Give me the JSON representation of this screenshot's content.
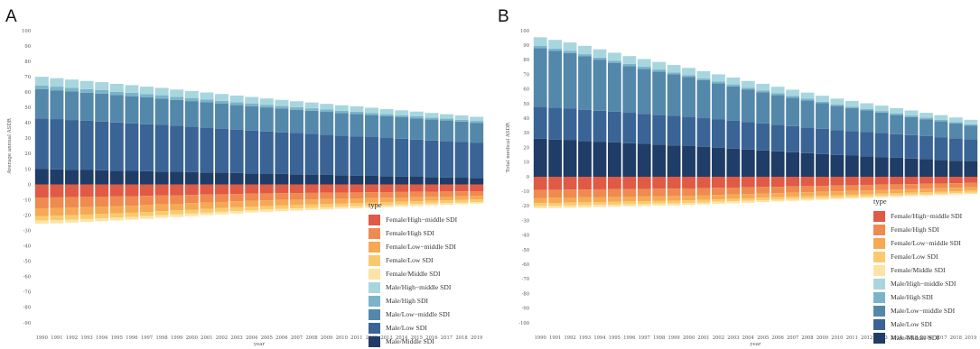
{
  "chart_data": [
    {
      "panel": "A",
      "type": "bar",
      "stacked": true,
      "ylabel": "Average annual ASDR",
      "xlabel": "year",
      "ylim": [
        -90,
        100
      ],
      "y_ticks": [
        -90,
        -80,
        -70,
        -60,
        -50,
        -40,
        -30,
        -20,
        -10,
        0,
        10,
        20,
        30,
        40,
        50,
        60,
        70,
        80,
        90,
        100
      ],
      "x": [
        1990,
        1991,
        1992,
        1993,
        1994,
        1995,
        1996,
        1997,
        1998,
        1999,
        2000,
        2001,
        2002,
        2003,
        2004,
        2005,
        2006,
        2007,
        2008,
        2009,
        2010,
        2011,
        2012,
        2013,
        2014,
        2015,
        2016,
        2017,
        2018,
        2019
      ],
      "x_tick_labels": [
        "1990",
        "1991",
        "1992",
        "1993",
        "1994",
        "1995",
        "1996",
        "1997",
        "1998",
        "1999",
        "2000",
        "2001",
        "2002",
        "2003",
        "2004",
        "2005",
        "2006",
        "2007",
        "2008",
        "2009",
        "2010",
        "2011",
        "2012",
        "2013",
        "2014",
        "2015",
        "2016",
        "2017",
        "2018",
        "2019"
      ],
      "legend_title": "type",
      "legend_position": "bottom-right",
      "grid": false,
      "series": [
        {
          "name": "Female/High−middle SDI",
          "color": "#e05a45",
          "values": [
            -8.5,
            -8.4,
            -8.3,
            -8.1,
            -7.9,
            -7.8,
            -7.6,
            -7.4,
            -7.2,
            -7.0,
            -6.8,
            -6.6,
            -6.4,
            -6.2,
            -6.0,
            -5.8,
            -5.7,
            -5.6,
            -5.5,
            -5.4,
            -5.3,
            -5.2,
            -5.1,
            -5.0,
            -4.9,
            -4.8,
            -4.7,
            -4.6,
            -4.5,
            -4.4
          ]
        },
        {
          "name": "Female/High SDI",
          "color": "#ef8a50",
          "values": [
            -7.0,
            -6.9,
            -6.8,
            -6.6,
            -6.5,
            -6.3,
            -6.2,
            -6.0,
            -5.8,
            -5.6,
            -5.4,
            -5.2,
            -5.0,
            -4.8,
            -4.6,
            -4.5,
            -4.4,
            -4.3,
            -4.2,
            -4.1,
            -4.0,
            -3.9,
            -3.8,
            -3.7,
            -3.6,
            -3.5,
            -3.4,
            -3.3,
            -3.2,
            -3.1
          ]
        },
        {
          "name": "Female/Low−middle SDI",
          "color": "#f5a955",
          "values": [
            -5.0,
            -5.0,
            -4.9,
            -4.9,
            -4.8,
            -4.7,
            -4.6,
            -4.5,
            -4.4,
            -4.3,
            -4.2,
            -4.1,
            -4.0,
            -3.9,
            -3.8,
            -3.7,
            -3.6,
            -3.5,
            -3.4,
            -3.3,
            -3.2,
            -3.1,
            -3.0,
            -2.9,
            -2.8,
            -2.7,
            -2.6,
            -2.5,
            -2.4,
            -2.3
          ]
        },
        {
          "name": "Female/Low SDI",
          "color": "#fbc96d",
          "values": [
            -3.0,
            -3.0,
            -2.9,
            -2.9,
            -2.8,
            -2.8,
            -2.7,
            -2.7,
            -2.6,
            -2.6,
            -2.5,
            -2.5,
            -2.4,
            -2.4,
            -2.3,
            -2.3,
            -2.2,
            -2.2,
            -2.1,
            -2.1,
            -2.0,
            -2.0,
            -1.9,
            -1.9,
            -1.8,
            -1.8,
            -1.7,
            -1.7,
            -1.6,
            -1.6
          ]
        },
        {
          "name": "Female/Middle SDI",
          "color": "#fde3a6",
          "values": [
            -2.0,
            -2.0,
            -1.9,
            -1.9,
            -1.9,
            -1.8,
            -1.8,
            -1.8,
            -1.7,
            -1.7,
            -1.7,
            -1.6,
            -1.6,
            -1.6,
            -1.5,
            -1.5,
            -1.5,
            -1.4,
            -1.4,
            -1.4,
            -1.3,
            -1.3,
            -1.3,
            -1.2,
            -1.2,
            -1.2,
            -1.1,
            -1.1,
            -1.1,
            -1.0
          ]
        },
        {
          "name": "Male/Middle SDI",
          "color": "#1f3d66",
          "values": [
            10.0,
            9.8,
            9.6,
            9.4,
            9.2,
            9.0,
            8.8,
            8.6,
            8.4,
            8.2,
            8.0,
            7.8,
            7.6,
            7.4,
            7.2,
            7.0,
            6.8,
            6.6,
            6.4,
            6.2,
            6.0,
            5.8,
            5.6,
            5.4,
            5.2,
            5.0,
            4.8,
            4.6,
            4.4,
            4.2
          ]
        },
        {
          "name": "Male/Low SDI",
          "color": "#3a6495",
          "values": [
            33.0,
            32.7,
            32.3,
            32.0,
            31.7,
            31.3,
            31.0,
            30.6,
            30.3,
            29.9,
            29.5,
            29.1,
            28.7,
            28.3,
            27.9,
            27.5,
            27.1,
            26.8,
            26.5,
            26.2,
            25.8,
            25.5,
            25.2,
            24.8,
            24.5,
            24.2,
            23.8,
            23.5,
            23.2,
            22.8
          ]
        },
        {
          "name": "Male/Low−middle SDI",
          "color": "#5488ab",
          "values": [
            18.9,
            18.7,
            18.5,
            18.3,
            18.1,
            17.8,
            17.6,
            17.4,
            17.2,
            16.9,
            16.7,
            16.5,
            16.2,
            16.0,
            15.8,
            15.6,
            15.4,
            15.2,
            15.0,
            14.8,
            14.6,
            14.5,
            14.3,
            14.1,
            14.0,
            13.8,
            13.6,
            13.5,
            13.3,
            13.1
          ]
        },
        {
          "name": "Male/High SDI",
          "color": "#7bb4c9",
          "values": [
            2.5,
            2.4,
            2.4,
            2.3,
            2.3,
            2.2,
            2.2,
            2.1,
            2.1,
            2.0,
            2.0,
            1.9,
            1.9,
            1.8,
            1.8,
            1.7,
            1.7,
            1.6,
            1.6,
            1.5,
            1.5,
            1.5,
            1.4,
            1.4,
            1.3,
            1.3,
            1.3,
            1.2,
            1.2,
            1.2
          ]
        },
        {
          "name": "Male/High−middle SDI",
          "color": "#a8d6df",
          "values": [
            5.6,
            5.5,
            5.4,
            5.3,
            5.2,
            5.1,
            5.0,
            4.9,
            4.8,
            4.7,
            4.6,
            4.5,
            4.4,
            4.3,
            4.2,
            4.1,
            4.0,
            3.9,
            3.8,
            3.7,
            3.6,
            3.5,
            3.4,
            3.3,
            3.2,
            3.1,
            3.0,
            2.9,
            2.8,
            2.7
          ]
        }
      ]
    },
    {
      "panel": "B",
      "type": "bar",
      "stacked": true,
      "ylabel": "Total medical ASDR",
      "xlabel": "year",
      "ylim": [
        -100,
        100
      ],
      "y_ticks": [
        -100,
        -90,
        -80,
        -70,
        -60,
        -50,
        -40,
        -30,
        -20,
        -10,
        0,
        10,
        20,
        30,
        40,
        50,
        60,
        70,
        80,
        90,
        100
      ],
      "x": [
        1990,
        1991,
        1992,
        1993,
        1994,
        1995,
        1996,
        1997,
        1998,
        1999,
        2000,
        2001,
        2002,
        2003,
        2004,
        2005,
        2006,
        2007,
        2008,
        2009,
        2010,
        2011,
        2012,
        2013,
        2014,
        2015,
        2016,
        2017,
        2018,
        2019
      ],
      "x_tick_labels": [
        "1990",
        "1991",
        "1992",
        "1993",
        "1994",
        "1995",
        "1996",
        "1997",
        "1998",
        "1999",
        "2000",
        "2001",
        "2002",
        "2003",
        "2004",
        "2005",
        "2006",
        "2007",
        "2008",
        "2009",
        "2010",
        "2011",
        "2012",
        "2013",
        "2014",
        "2015",
        "2016",
        "2017",
        "2018",
        "2019"
      ],
      "legend_title": "type",
      "legend_position": "bottom-right",
      "grid": false,
      "series": [
        {
          "name": "Female/High−middle SDI",
          "color": "#e05a45",
          "values": [
            -9.0,
            -8.9,
            -8.8,
            -8.7,
            -8.6,
            -8.5,
            -8.4,
            -8.3,
            -8.2,
            -8.1,
            -8.0,
            -7.8,
            -7.6,
            -7.4,
            -7.2,
            -7.0,
            -6.8,
            -6.6,
            -6.4,
            -6.2,
            -6.0,
            -5.8,
            -5.6,
            -5.4,
            -5.2,
            -5.0,
            -4.8,
            -4.6,
            -4.4,
            -4.2
          ]
        },
        {
          "name": "Female/High SDI",
          "color": "#ef8a50",
          "values": [
            -5.5,
            -5.5,
            -5.4,
            -5.4,
            -5.3,
            -5.3,
            -5.2,
            -5.2,
            -5.1,
            -5.1,
            -5.0,
            -4.9,
            -4.8,
            -4.7,
            -4.6,
            -4.5,
            -4.4,
            -4.3,
            -4.2,
            -4.1,
            -4.0,
            -3.9,
            -3.8,
            -3.7,
            -3.6,
            -3.5,
            -3.4,
            -3.3,
            -3.2,
            -3.1
          ]
        },
        {
          "name": "Female/Low−middle SDI",
          "color": "#f5a955",
          "values": [
            -3.5,
            -3.5,
            -3.5,
            -3.4,
            -3.4,
            -3.4,
            -3.3,
            -3.3,
            -3.3,
            -3.2,
            -3.2,
            -3.1,
            -3.1,
            -3.0,
            -3.0,
            -2.9,
            -2.9,
            -2.8,
            -2.8,
            -2.7,
            -2.7,
            -2.6,
            -2.6,
            -2.5,
            -2.5,
            -2.4,
            -2.4,
            -2.3,
            -2.3,
            -2.2
          ]
        },
        {
          "name": "Female/Low SDI",
          "color": "#fbc96d",
          "values": [
            -2.0,
            -2.0,
            -2.0,
            -2.0,
            -1.9,
            -1.9,
            -1.9,
            -1.9,
            -1.8,
            -1.8,
            -1.8,
            -1.8,
            -1.7,
            -1.7,
            -1.7,
            -1.7,
            -1.6,
            -1.6,
            -1.6,
            -1.6,
            -1.5,
            -1.5,
            -1.5,
            -1.5,
            -1.4,
            -1.4,
            -1.4,
            -1.4,
            -1.3,
            -1.3
          ]
        },
        {
          "name": "Female/Middle SDI",
          "color": "#fde3a6",
          "values": [
            -1.5,
            -1.5,
            -1.5,
            -1.5,
            -1.5,
            -1.4,
            -1.4,
            -1.4,
            -1.4,
            -1.4,
            -1.3,
            -1.3,
            -1.3,
            -1.3,
            -1.3,
            -1.2,
            -1.2,
            -1.2,
            -1.2,
            -1.2,
            -1.1,
            -1.1,
            -1.1,
            -1.1,
            -1.1,
            -1.0,
            -1.0,
            -1.0,
            -1.0,
            -1.0
          ]
        },
        {
          "name": "Male/Middle SDI",
          "color": "#1f3d66",
          "values": [
            26.0,
            25.5,
            25.0,
            24.5,
            24.0,
            23.5,
            23.0,
            22.5,
            22.0,
            21.5,
            21.0,
            20.4,
            19.8,
            19.2,
            18.6,
            18.0,
            17.4,
            16.8,
            16.2,
            15.6,
            15.0,
            14.5,
            14.0,
            13.5,
            13.0,
            12.5,
            12.0,
            11.5,
            11.0,
            10.5
          ]
        },
        {
          "name": "Male/Low SDI",
          "color": "#3a6495",
          "values": [
            22.0,
            21.8,
            21.6,
            21.4,
            21.2,
            21.0,
            20.8,
            20.6,
            20.4,
            20.2,
            20.0,
            19.7,
            19.4,
            19.1,
            18.8,
            18.5,
            18.2,
            17.9,
            17.6,
            17.3,
            17.0,
            16.8,
            16.6,
            16.4,
            16.2,
            16.0,
            15.8,
            15.6,
            15.4,
            15.2
          ]
        },
        {
          "name": "Male/Low−middle SDI",
          "color": "#5488ab",
          "values": [
            40.0,
            39.0,
            38.0,
            36.5,
            35.0,
            33.5,
            32.0,
            30.8,
            29.6,
            28.4,
            27.2,
            26.0,
            24.8,
            23.6,
            22.4,
            21.4,
            20.4,
            19.4,
            18.4,
            17.4,
            16.4,
            15.6,
            14.8,
            14.0,
            13.2,
            12.4,
            11.6,
            10.8,
            10.0,
            9.2
          ]
        },
        {
          "name": "Male/High SDI",
          "color": "#7bb4c9",
          "values": [
            1.5,
            1.5,
            1.5,
            1.5,
            1.4,
            1.4,
            1.4,
            1.4,
            1.4,
            1.3,
            1.3,
            1.3,
            1.3,
            1.3,
            1.2,
            1.2,
            1.2,
            1.2,
            1.2,
            1.1,
            1.1,
            1.1,
            1.1,
            1.1,
            1.0,
            1.0,
            1.0,
            1.0,
            1.0,
            1.0
          ]
        },
        {
          "name": "Male/High−middle SDI",
          "color": "#a8d6df",
          "values": [
            6.0,
            5.9,
            5.8,
            5.7,
            5.6,
            5.5,
            5.4,
            5.3,
            5.2,
            5.1,
            5.0,
            4.9,
            4.8,
            4.7,
            4.6,
            4.5,
            4.4,
            4.3,
            4.2,
            4.1,
            4.0,
            3.9,
            3.8,
            3.7,
            3.6,
            3.5,
            3.4,
            3.3,
            3.2,
            3.1
          ]
        }
      ]
    }
  ],
  "panels": [
    {
      "letter": "A"
    },
    {
      "letter": "B"
    }
  ],
  "legend": {
    "title": "type",
    "items": [
      {
        "label": "Female/High−middle SDI",
        "color": "#e05a45"
      },
      {
        "label": "Female/High SDI",
        "color": "#ef8a50"
      },
      {
        "label": "Female/Low−middle SDI",
        "color": "#f5a955"
      },
      {
        "label": "Female/Low SDI",
        "color": "#fbc96d"
      },
      {
        "label": "Female/Middle SDI",
        "color": "#fde3a6"
      },
      {
        "label": "Male/High−middle SDI",
        "color": "#a8d6df"
      },
      {
        "label": "Male/High SDI",
        "color": "#7bb4c9"
      },
      {
        "label": "Male/Low−middle SDI",
        "color": "#5488ab"
      },
      {
        "label": "Male/Low SDI",
        "color": "#3a6495"
      },
      {
        "label": "Male/Middle SDI",
        "color": "#1f3d66"
      }
    ]
  }
}
